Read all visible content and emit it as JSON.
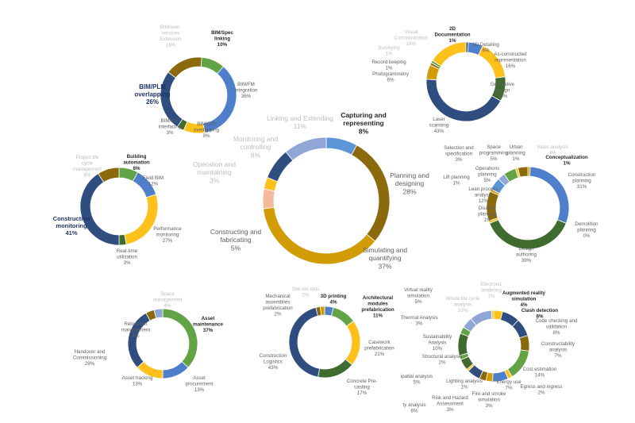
{
  "colors": {
    "dark_navy": "#2f4d7e",
    "blue": "#4f7fcb",
    "green": "#62a345",
    "yellow": "#fec11c",
    "gold": "#d19c06",
    "brown": "#8b6a0e",
    "dark_green": "#3f6b2f",
    "light_blue": "#5b97d8",
    "peach": "#f5b99c",
    "periwinkle": "#8fa6d6",
    "gray_text": "#606060",
    "faded_text": "#bdbdbd",
    "navy_text": "#1f3464",
    "black_text": "#262626"
  },
  "chart_data": [
    {
      "type": "donut",
      "id": "capture-represent",
      "labels": [
        "BIM/Spec\nlinking\n10%",
        "BIM/FM\nintegration\n36%",
        "BIM/GIS\noverlapping\n9%",
        "BIM/IOT\ninterfacing\n3%",
        "BIM/PLM\noverlapping\n26%",
        "BIM/web-\nservices\nExtension\n16%"
      ],
      "values": [
        10,
        36,
        9,
        3,
        26,
        16
      ]
    },
    {
      "type": "donut",
      "id": "planning-designing",
      "labels": [
        "2D\nDocumentation\n1%",
        "3D Detailing\n6%",
        "As-constructed\nrepresentation\n16%",
        "Generative\ndesign\n10%",
        "Laser\nscanning\n43%",
        "Photogrammetry\n6%",
        "Record keeping\n1%",
        "Surveying\n1%",
        "Visual\nCommunication\n16%"
      ],
      "values": [
        1,
        6,
        16,
        10,
        43,
        6,
        1,
        1,
        16
      ]
    },
    {
      "type": "donut",
      "id": "main-lifecycle",
      "labels": [
        "Capturing and\nrepresenting\n8%",
        "Planning and\ndesigning\n28%",
        "Simulating and\nquantifying\n37%",
        "Constructing and\nfabricating\n5%",
        "Operation and\nmaintaining\n3%",
        "Monitoring and\ncontrolling\n8%",
        "Linking and Extending\n11%"
      ],
      "values": [
        8,
        28,
        37,
        5,
        3,
        8,
        11
      ]
    },
    {
      "type": "donut",
      "id": "simulating-quantifying",
      "labels": [
        "Conceptualization\n1%",
        "Construction\nplanning\n31%",
        "Demolition\nplanning\n0%",
        "Design\nauthoring\n39%",
        "Disaster\nplanning\n1%",
        "Lean process\nanalysis\n12%",
        "Lift planning\n1%",
        "Operations\nplanning\n5%",
        "Selection and\nspecification\n3%",
        "Space\nprogramming\n5%",
        "Urban\nplanning\n1%",
        "Value analysis\n4%"
      ],
      "values": [
        1,
        31,
        0,
        39,
        1,
        12,
        1,
        5,
        3,
        5,
        1,
        4
      ]
    },
    {
      "type": "donut",
      "id": "monitoring-controlling",
      "labels": [
        "Building\nautomation\n8%",
        "Field BIM\n12%",
        "Performance\nmonitoring\n27%",
        "Real-time\nutilization\n3%",
        "Construction\nmonitoring\n41%",
        "Project life\ncycle\nmanagement\n9%"
      ],
      "values": [
        8,
        12,
        27,
        3,
        41,
        9
      ]
    },
    {
      "type": "donut",
      "id": "operation-maintaining",
      "labels": [
        "Asset\nmaintenance\n37%",
        "Asset\nprocurement\n13%",
        "Asset tracking\n13%",
        "Handover and\nCommissioning\n29%",
        "Relocation\nmanagement\n4%",
        "Space\nmanagement\n4%"
      ],
      "values": [
        37,
        13,
        13,
        29,
        4,
        4
      ]
    },
    {
      "type": "donut",
      "id": "constructing-fabricating",
      "labels": [
        "3D printing\n4%",
        "Architectural\nmodules\nprefabrication\n11%",
        "Casework\nprefabrication\n21%",
        "Concrete Pre-\ncasting\n17%",
        "Construction\nLogistics\n43%",
        "Mechanical\nassemblies\nprefabrication\n2%",
        "Site set-outs\n2%"
      ],
      "values": [
        4,
        11,
        21,
        17,
        43,
        2,
        2
      ]
    },
    {
      "type": "donut",
      "id": "simulating-analysis",
      "labels": [
        "Augmented reality\nsimulation\n4%",
        "Clash detection\n8%",
        "Code checking and\nvalidation\n8%",
        "Constructability\nanalysis\n7%",
        "Cost estimation\n14%",
        "Egress and ingress\n2%",
        "Energy use\n7%",
        "Fire and smoke\nsimulation\n3%",
        "Risk and Hazard\nAssessment\n3%",
        "ty analysis\n6%",
        "Lighting analysis\n1%",
        "ipatial analysis\n5%",
        "Structural analysis\n2%",
        "Sustainability\nAnalysis\n10%",
        "Thermal Analysis\n3%",
        "Virtual reality\nsimulation\n5%",
        "Whole life cycle\nanalysis\n10%",
        "Electronic\ntendering\n1%"
      ],
      "values": [
        4,
        8,
        8,
        7,
        14,
        2,
        7,
        3,
        3,
        6,
        1,
        5,
        2,
        10,
        3,
        5,
        10,
        1
      ]
    }
  ]
}
